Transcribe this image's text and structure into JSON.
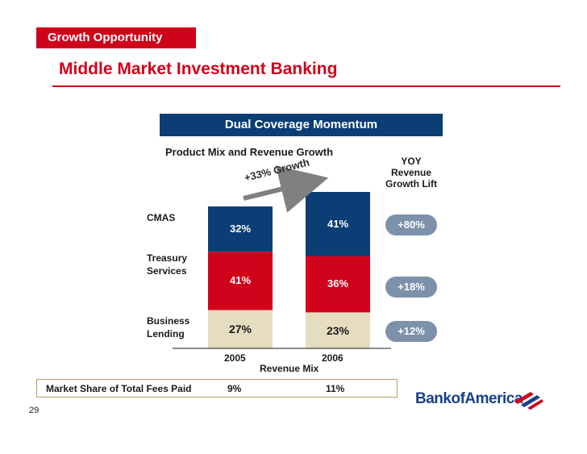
{
  "header": {
    "section_tag": "Growth Opportunity",
    "page_title": "Middle Market Investment Banking"
  },
  "banner": {
    "title": "Dual Coverage Momentum"
  },
  "chart_data": {
    "type": "bar",
    "stacked": true,
    "title": "Product Mix and Revenue Growth",
    "categories": [
      "2005",
      "2006"
    ],
    "xlabel": "Revenue Mix",
    "ylabel": "",
    "ylim": [
      0,
      100
    ],
    "growth_annotation": "+33% Growth",
    "series": [
      {
        "name": "Business Lending",
        "label_lines": [
          "Business",
          "Lending"
        ],
        "values": [
          27,
          23
        ],
        "labels": [
          "27%",
          "23%"
        ],
        "color": "#e6dcc0",
        "text_color": "#1a1a1a",
        "yoy": "+12%"
      },
      {
        "name": "Treasury Services",
        "label_lines": [
          "Treasury",
          "Services"
        ],
        "values": [
          41,
          36
        ],
        "labels": [
          "41%",
          "36%"
        ],
        "color": "#d0021b",
        "text_color": "#ffffff",
        "yoy": "+18%"
      },
      {
        "name": "CMAS",
        "label_lines": [
          "CMAS"
        ],
        "values": [
          32,
          41
        ],
        "labels": [
          "32%",
          "41%"
        ],
        "color": "#0a3e74",
        "text_color": "#ffffff",
        "yoy": "+80%"
      }
    ],
    "yoy_header": [
      "YOY",
      "Revenue",
      "Growth Lift"
    ]
  },
  "market_share": {
    "label": "Market Share of Total Fees Paid",
    "values": [
      "9%",
      "11%"
    ]
  },
  "footer": {
    "page_number": "29",
    "logo_text": "BankofAmerica"
  }
}
